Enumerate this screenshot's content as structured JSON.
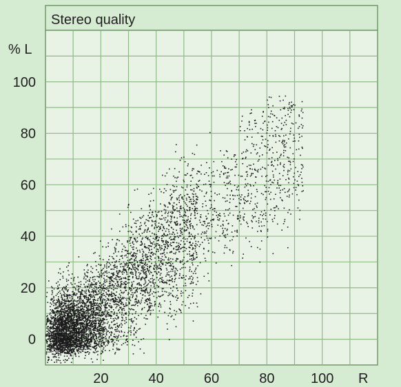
{
  "chart_data": {
    "type": "scatter",
    "title": "Stereo quality",
    "ylabel": "% L",
    "xlabel": "R",
    "xlim": [
      0,
      120
    ],
    "ylim": [
      -10,
      120
    ],
    "x_ticks": [
      "20",
      "40",
      "60",
      "80",
      "100"
    ],
    "y_ticks": [
      "0",
      "20",
      "40",
      "60",
      "80",
      "100"
    ],
    "grid": true,
    "point_color": "#1a1a1a",
    "point_count_estimate": 6000,
    "density_description": "dense cluster at low L/low R, spreading diagonally upward to ~90 L at ~90 R"
  },
  "colors": {
    "panel": "#d6ecd2",
    "plot_bg": "#e8f3e6",
    "grid": "#8fba86",
    "border": "#6f9a68",
    "text": "#1e1e1e"
  }
}
